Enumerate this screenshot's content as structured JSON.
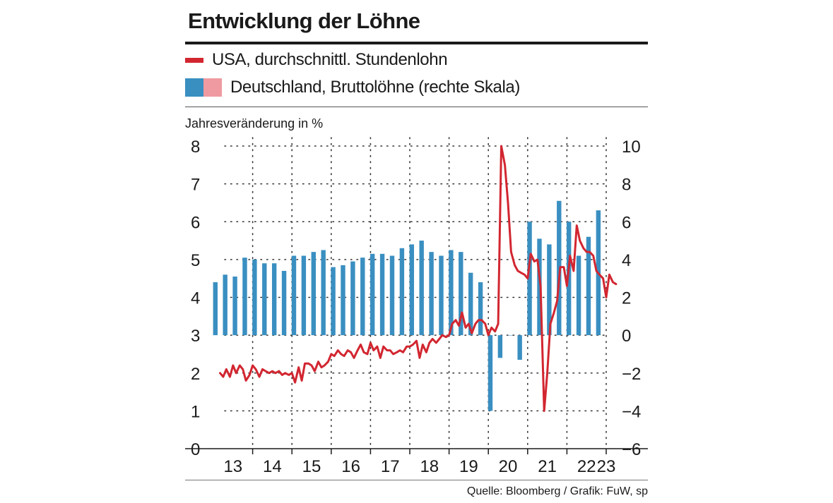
{
  "header": {
    "title": "Entwicklung der Löhne",
    "source": "Quelle: Bloomberg / Grafik: FuW, sp"
  },
  "colors": {
    "line": "#d22630",
    "bar": "#3a8fc1",
    "bar_alt": "#ef9aa0",
    "grid": "#333333"
  },
  "chart_data": {
    "type": "bar+line",
    "title": "Entwicklung der Löhne",
    "ylabel": "Jahresveränderung in %",
    "legend": [
      "USA, durchschnittl. Stundenlohn",
      "Deutschland, Bruttolöhne (rechte Skala)"
    ],
    "x_ticks": [
      "13",
      "14",
      "15",
      "16",
      "17",
      "18",
      "19",
      "20",
      "21",
      "22",
      "23"
    ],
    "y_left": {
      "min": 0,
      "max": 8,
      "ticks": [
        "0",
        "1",
        "2",
        "3",
        "4",
        "5",
        "6",
        "7",
        "8"
      ]
    },
    "y_right": {
      "min": -6,
      "max": 10,
      "ticks": [
        "−6",
        "−4",
        "−2",
        "0",
        "2",
        "4",
        "6",
        "8",
        "10"
      ]
    },
    "series": [
      {
        "name": "Deutschland, Bruttolöhne (rechte Skala)",
        "type": "bar",
        "axis": "right",
        "time": [
          2013.0,
          2013.25,
          2013.5,
          2013.75,
          2014.0,
          2014.25,
          2014.5,
          2014.75,
          2015.0,
          2015.25,
          2015.5,
          2015.75,
          2016.0,
          2016.25,
          2016.5,
          2016.75,
          2017.0,
          2017.25,
          2017.5,
          2017.75,
          2018.0,
          2018.25,
          2018.5,
          2018.75,
          2019.0,
          2019.25,
          2019.5,
          2019.75,
          2020.0,
          2020.25,
          2020.5,
          2020.75,
          2021.0,
          2021.25,
          2021.5,
          2021.75,
          2022.0,
          2022.25,
          2022.5,
          2022.75
        ],
        "values": [
          2.8,
          3.2,
          3.1,
          4.1,
          4.0,
          3.8,
          3.8,
          3.4,
          4.2,
          4.2,
          4.4,
          4.5,
          3.6,
          3.7,
          3.9,
          4.1,
          4.3,
          4.3,
          4.2,
          4.6,
          4.8,
          5.0,
          4.4,
          4.2,
          4.5,
          4.4,
          3.3,
          2.8,
          -4.0,
          -1.2,
          0.0,
          -1.3,
          6.0,
          5.1,
          4.8,
          7.1,
          6.0,
          4.2,
          5.2,
          6.6
        ]
      },
      {
        "name": "USA, durchschnittl. Stundenlohn",
        "type": "line",
        "axis": "left",
        "time": [
          2013.17,
          2013.25,
          2013.33,
          2013.42,
          2013.5,
          2013.58,
          2013.67,
          2013.75,
          2013.83,
          2013.92,
          2014.0,
          2014.08,
          2014.17,
          2014.25,
          2014.33,
          2014.42,
          2014.5,
          2014.58,
          2014.67,
          2014.75,
          2014.83,
          2014.92,
          2015.0,
          2015.08,
          2015.17,
          2015.25,
          2015.33,
          2015.42,
          2015.5,
          2015.58,
          2015.67,
          2015.75,
          2015.83,
          2015.92,
          2016.0,
          2016.08,
          2016.17,
          2016.25,
          2016.33,
          2016.42,
          2016.5,
          2016.58,
          2016.67,
          2016.75,
          2016.83,
          2016.92,
          2017.0,
          2017.08,
          2017.17,
          2017.25,
          2017.33,
          2017.42,
          2017.5,
          2017.58,
          2017.67,
          2017.75,
          2017.83,
          2017.92,
          2018.0,
          2018.08,
          2018.17,
          2018.25,
          2018.33,
          2018.42,
          2018.5,
          2018.58,
          2018.67,
          2018.75,
          2018.83,
          2018.92,
          2019.0,
          2019.08,
          2019.17,
          2019.25,
          2019.33,
          2019.42,
          2019.5,
          2019.58,
          2019.67,
          2019.75,
          2019.83,
          2019.92,
          2020.0,
          2020.08,
          2020.17,
          2020.25,
          2020.33,
          2020.42,
          2020.5,
          2020.58,
          2020.67,
          2020.75,
          2020.83,
          2020.92,
          2021.0,
          2021.08,
          2021.17,
          2021.25,
          2021.33,
          2021.42,
          2021.5,
          2021.58,
          2021.67,
          2021.75,
          2021.83,
          2021.92,
          2022.0,
          2022.08,
          2022.17,
          2022.25,
          2022.33,
          2022.42,
          2022.5,
          2022.58,
          2022.67,
          2022.75,
          2022.83,
          2022.92,
          2023.0,
          2023.08,
          2023.17,
          2023.25
        ],
        "values": [
          2.0,
          1.9,
          2.1,
          1.9,
          2.2,
          2.0,
          2.2,
          2.1,
          1.8,
          1.95,
          2.2,
          2.1,
          1.9,
          2.1,
          2.05,
          2.0,
          2.05,
          2.0,
          2.05,
          1.95,
          2.0,
          1.95,
          2.0,
          1.75,
          2.15,
          1.8,
          2.25,
          2.25,
          2.2,
          2.05,
          2.3,
          2.15,
          2.2,
          2.3,
          2.5,
          2.45,
          2.6,
          2.5,
          2.45,
          2.6,
          2.55,
          2.4,
          2.6,
          2.75,
          2.55,
          2.5,
          2.8,
          2.6,
          2.7,
          2.4,
          2.7,
          2.6,
          2.6,
          2.5,
          2.55,
          2.6,
          2.55,
          2.7,
          2.7,
          2.75,
          2.85,
          2.4,
          2.75,
          2.55,
          2.8,
          2.9,
          2.8,
          2.9,
          3.0,
          2.95,
          3.0,
          3.3,
          3.4,
          3.25,
          3.6,
          3.2,
          3.3,
          3.05,
          3.3,
          3.4,
          3.4,
          3.3,
          3.0,
          3.2,
          3.1,
          3.3,
          8.0,
          7.5,
          6.5,
          5.2,
          4.85,
          4.7,
          4.65,
          4.6,
          4.5,
          5.15,
          4.95,
          5.0,
          4.3,
          1.0,
          2.0,
          3.3,
          3.6,
          3.9,
          4.8,
          4.8,
          4.3,
          5.1,
          4.7,
          5.9,
          5.5,
          5.3,
          5.2,
          5.2,
          5.1,
          4.7,
          4.6,
          4.5,
          4.0,
          4.6,
          4.4,
          4.35
        ]
      }
    ]
  }
}
